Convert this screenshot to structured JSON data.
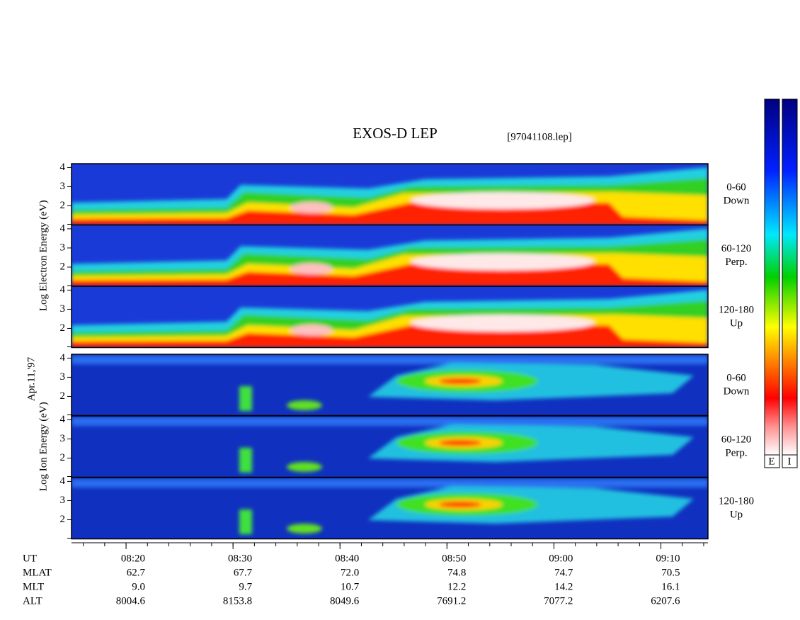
{
  "chart_data": {
    "type": "spectrogram",
    "title": "EXOS-D LEP",
    "subtitle": "[97041108.lep]",
    "date_label": "Apr.11,'97",
    "groups": [
      {
        "species": "electron",
        "axis_label": "Log Electron Energy (eV)",
        "panels": [
          {
            "label": [
              "0-60",
              "Down"
            ]
          },
          {
            "label": [
              "60-120",
              "Perp."
            ]
          },
          {
            "label": [
              "120-180",
              "Up"
            ]
          }
        ]
      },
      {
        "species": "ion",
        "axis_label": "Log Ion Energy (eV)",
        "panels": [
          {
            "label": [
              "0-60",
              "Down"
            ]
          },
          {
            "label": [
              "60-120",
              "Perp."
            ]
          },
          {
            "label": [
              "120-180",
              "Up"
            ]
          }
        ]
      }
    ],
    "ylim": [
      1,
      4.2
    ],
    "yticks": [
      2,
      3,
      4
    ],
    "xlim": [
      494.9,
      554.4
    ],
    "xticks": [
      {
        "value": 500,
        "label": "08:20"
      },
      {
        "value": 510,
        "label": "08:30"
      },
      {
        "value": 520,
        "label": "08:40"
      },
      {
        "value": 530,
        "label": "08:50"
      },
      {
        "value": 540,
        "label": "09:00"
      },
      {
        "value": 550,
        "label": "09:10"
      }
    ],
    "footer": [
      {
        "name": "UT"
      },
      {
        "name": "MLAT",
        "values": [
          "62.7",
          "67.7",
          "72.0",
          "74.8",
          "74.7",
          "70.5"
        ]
      },
      {
        "name": "MLT",
        "values": [
          "9.0",
          "9.7",
          "10.7",
          "12.2",
          "14.2",
          "16.1"
        ]
      },
      {
        "name": "ALT",
        "values": [
          "8004.6",
          "8153.8",
          "8049.6",
          "7691.2",
          "7077.2",
          "6207.6"
        ]
      }
    ],
    "colorbar_labels": [
      "E",
      "I"
    ]
  }
}
